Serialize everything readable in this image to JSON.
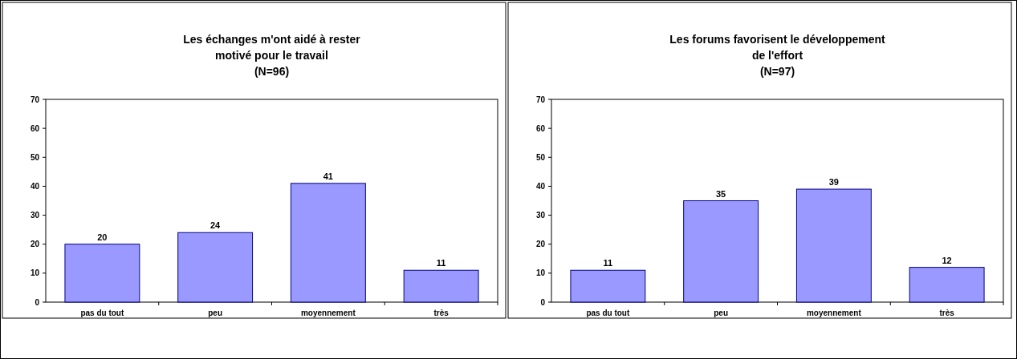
{
  "chart_data": [
    {
      "type": "bar",
      "title": "Les échanges m'ont aidé à rester\nmotivé pour le travail\n(N=96)",
      "categories": [
        "pas du tout",
        "peu",
        "moyennement",
        "très"
      ],
      "values": [
        20,
        24,
        41,
        11
      ],
      "color": "#9999ff",
      "ylim": [
        0,
        70
      ],
      "yticks": [
        0,
        10,
        20,
        30,
        40,
        50,
        60,
        70
      ],
      "data_labels": true,
      "grid": false
    },
    {
      "type": "bar",
      "title": "Les forums favorisent le développement\nde l'effort\n(N=97)",
      "categories": [
        "pas du tout",
        "peu",
        "moyennement",
        "très"
      ],
      "values": [
        11,
        35,
        39,
        12
      ],
      "color": "#9999ff",
      "ylim": [
        0,
        70
      ],
      "yticks": [
        0,
        10,
        20,
        30,
        40,
        50,
        60,
        70
      ],
      "data_labels": true,
      "grid": false
    }
  ]
}
